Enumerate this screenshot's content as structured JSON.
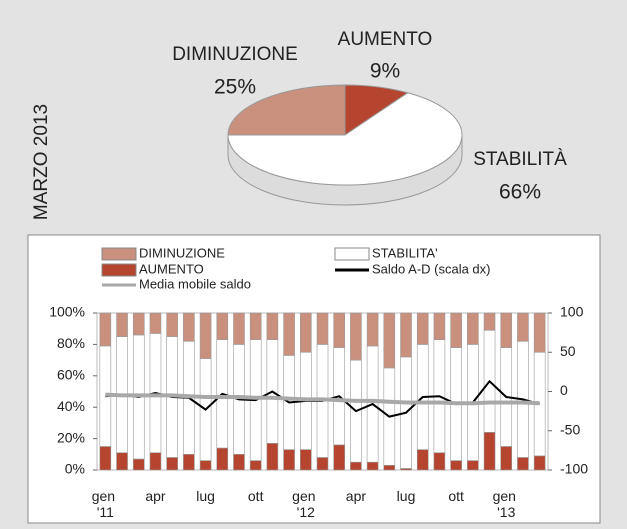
{
  "chart_data": [
    {
      "type": "pie",
      "title": "MARZO 2013",
      "categories": [
        "AUMENTO",
        "STABILITÀ",
        "DIMINUZIONE"
      ],
      "values": [
        9,
        66,
        25
      ],
      "value_labels": [
        "9%",
        "66%",
        "25%"
      ],
      "colors": [
        "#b5452f",
        "#ffffff",
        "#c9907e"
      ]
    },
    {
      "type": "bar",
      "stacked": true,
      "categories": [
        "gen '11",
        null,
        null,
        "apr",
        null,
        null,
        "lug",
        null,
        null,
        "ott",
        null,
        null,
        "gen '12",
        null,
        null,
        "apr",
        null,
        null,
        "lug",
        null,
        null,
        "ott",
        null,
        null,
        "gen '13",
        null,
        null
      ],
      "series": [
        {
          "name": "AUMENTO",
          "color": "#b5452f",
          "values": [
            15,
            11,
            7,
            11,
            8,
            10,
            6,
            14,
            10,
            6,
            17,
            13,
            13,
            8,
            16,
            5,
            5,
            3,
            1,
            13,
            11,
            6,
            6,
            24,
            15,
            8,
            9
          ]
        },
        {
          "name": "STABILITA'",
          "color": "#ffffff",
          "values": [
            64,
            74,
            79,
            76,
            77,
            72,
            65,
            69,
            70,
            77,
            66,
            60,
            62,
            72,
            62,
            65,
            74,
            62,
            71,
            67,
            72,
            72,
            74,
            65,
            63,
            74,
            66
          ]
        },
        {
          "name": "DIMINUZIONE",
          "color": "#c9907e",
          "values": [
            21,
            15,
            14,
            13,
            15,
            18,
            29,
            17,
            20,
            17,
            17,
            27,
            25,
            20,
            22,
            30,
            21,
            35,
            28,
            20,
            17,
            22,
            20,
            11,
            22,
            18,
            25
          ]
        },
        {
          "name": "Saldo A-D (scala dx)",
          "color": "#000000",
          "axis": "y2",
          "values": [
            -6,
            -4,
            -7,
            -2,
            -7,
            -8,
            -23,
            -3,
            -10,
            -11,
            0,
            -14,
            -12,
            -12,
            -6,
            -25,
            -16,
            -32,
            -27,
            -7,
            -6,
            -16,
            -14,
            13,
            -7,
            -10,
            -16
          ]
        },
        {
          "name": "Media mobile saldo",
          "color": "#a8a8a8",
          "axis": "y2",
          "values": [
            -4,
            -5,
            -5,
            -5,
            -5,
            -6,
            -7,
            -7,
            -7,
            -8,
            -8,
            -9,
            -10,
            -10,
            -11,
            -12,
            -12,
            -13,
            -14,
            -14,
            -14,
            -15,
            -15,
            -14,
            -14,
            -14,
            -15
          ]
        }
      ],
      "ylim": [
        0,
        100
      ],
      "yticks": [
        {
          "value": 0,
          "label": "0%"
        },
        {
          "value": 20,
          "label": "20%"
        },
        {
          "value": 40,
          "label": "40%"
        },
        {
          "value": 60,
          "label": "60%"
        },
        {
          "value": 80,
          "label": "80%"
        },
        {
          "value": 100,
          "label": "100%"
        }
      ],
      "y2lim": [
        -100,
        100
      ],
      "y2ticks": [
        -100,
        -50,
        0,
        50,
        100
      ]
    }
  ]
}
